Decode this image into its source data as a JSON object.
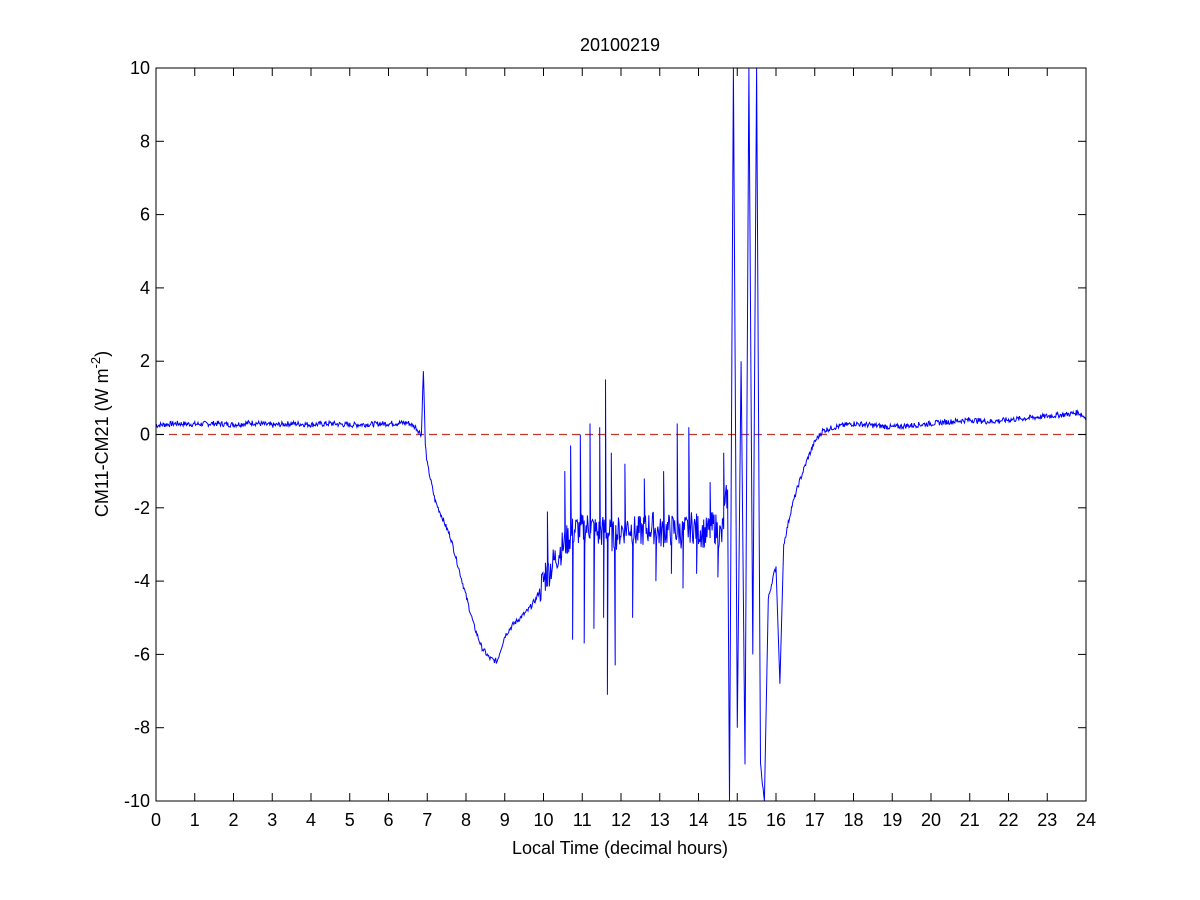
{
  "chart_data": {
    "type": "line",
    "title": "20100219",
    "xlabel": "Local Time (decimal hours)",
    "ylabel": {
      "main": "CM11-CM21 (W m",
      "sup": "-2",
      "close": ")"
    },
    "xlim": [
      0,
      24
    ],
    "ylim": [
      -10,
      10
    ],
    "xticks": [
      0,
      1,
      2,
      3,
      4,
      5,
      6,
      7,
      8,
      9,
      10,
      11,
      12,
      13,
      14,
      15,
      16,
      17,
      18,
      19,
      20,
      21,
      22,
      23,
      24
    ],
    "yticks": [
      -10,
      -8,
      -6,
      -4,
      -2,
      0,
      2,
      4,
      6,
      8,
      10
    ],
    "grid": false,
    "box": true,
    "reference_line": {
      "y": 0,
      "color": "#c0392b",
      "style": "dashed"
    },
    "series": [
      {
        "color": "#0000ff",
        "x": [
          0,
          0.5,
          1,
          1.5,
          2,
          2.5,
          3,
          3.5,
          4,
          4.5,
          5,
          5.5,
          6,
          6.5,
          6.7,
          6.85,
          6.9,
          6.95,
          7.0,
          7.2,
          7.4,
          7.6,
          7.8,
          8.0,
          8.2,
          8.4,
          8.6,
          8.8,
          9.0,
          9.2,
          9.4,
          9.6,
          9.8,
          10.0,
          10.2,
          10.4,
          10.6,
          10.8,
          11.0,
          11.2,
          11.4,
          11.6,
          11.8,
          12.0,
          12.2,
          12.4,
          12.6,
          12.8,
          13.0,
          13.2,
          13.4,
          13.6,
          13.8,
          14.0,
          14.2,
          14.4,
          14.6,
          14.75,
          14.8,
          14.9,
          15.0,
          15.1,
          15.2,
          15.3,
          15.4,
          15.5,
          15.6,
          15.7,
          15.8,
          15.9,
          16.0,
          16.1,
          16.2,
          16.4,
          16.6,
          16.8,
          17.0,
          17.2,
          17.5,
          18.0,
          18.5,
          19.0,
          19.5,
          20.0,
          20.5,
          21.0,
          21.5,
          22.0,
          22.5,
          23.0,
          23.5,
          23.8,
          24.0
        ],
        "y": [
          0.25,
          0.3,
          0.28,
          0.3,
          0.27,
          0.32,
          0.25,
          0.3,
          0.27,
          0.3,
          0.26,
          0.28,
          0.3,
          0.32,
          0.2,
          0.0,
          1.8,
          -0.3,
          -0.8,
          -1.8,
          -2.3,
          -2.8,
          -3.6,
          -4.4,
          -5.2,
          -5.8,
          -6.1,
          -6.2,
          -5.5,
          -5.2,
          -5.0,
          -4.8,
          -4.5,
          -4.0,
          -3.6,
          -3.2,
          -2.9,
          -2.6,
          -2.6,
          -2.5,
          -2.7,
          -2.6,
          -2.8,
          -2.6,
          -2.5,
          -2.7,
          -2.6,
          -2.5,
          -2.7,
          -2.6,
          -2.6,
          -2.7,
          -2.5,
          -2.6,
          -2.7,
          -2.5,
          -2.8,
          -1.5,
          -10,
          10,
          -8,
          2,
          -9,
          10,
          -6,
          10,
          -9,
          -10,
          -4.5,
          -4.0,
          -3.6,
          -6.8,
          -3.0,
          -2.0,
          -1.3,
          -0.7,
          -0.2,
          0.1,
          0.2,
          0.3,
          0.25,
          0.2,
          0.25,
          0.3,
          0.35,
          0.4,
          0.35,
          0.4,
          0.45,
          0.5,
          0.55,
          0.6,
          0.45
        ],
        "spikes": [
          {
            "x": 10.05,
            "y": -3.5
          },
          {
            "x": 10.1,
            "y": -2.1
          },
          {
            "x": 10.55,
            "y": -1.0
          },
          {
            "x": 10.7,
            "y": -0.3
          },
          {
            "x": 10.75,
            "y": -5.6
          },
          {
            "x": 10.95,
            "y": 0.0
          },
          {
            "x": 11.05,
            "y": -5.7
          },
          {
            "x": 11.2,
            "y": 0.3
          },
          {
            "x": 11.3,
            "y": -5.3
          },
          {
            "x": 11.45,
            "y": 0.2
          },
          {
            "x": 11.55,
            "y": -5.0
          },
          {
            "x": 11.6,
            "y": 1.5
          },
          {
            "x": 11.65,
            "y": -7.1
          },
          {
            "x": 11.75,
            "y": -0.5
          },
          {
            "x": 11.85,
            "y": -6.3
          },
          {
            "x": 12.1,
            "y": -0.8
          },
          {
            "x": 12.3,
            "y": -5.0
          },
          {
            "x": 12.6,
            "y": -1.2
          },
          {
            "x": 12.9,
            "y": -4.0
          },
          {
            "x": 13.1,
            "y": -1.0
          },
          {
            "x": 13.3,
            "y": -3.8
          },
          {
            "x": 13.45,
            "y": 0.3
          },
          {
            "x": 13.6,
            "y": -4.2
          },
          {
            "x": 13.75,
            "y": 0.2
          },
          {
            "x": 13.95,
            "y": -3.8
          },
          {
            "x": 14.3,
            "y": -1.3
          },
          {
            "x": 14.5,
            "y": -3.9
          },
          {
            "x": 14.65,
            "y": -0.5
          }
        ]
      }
    ]
  }
}
